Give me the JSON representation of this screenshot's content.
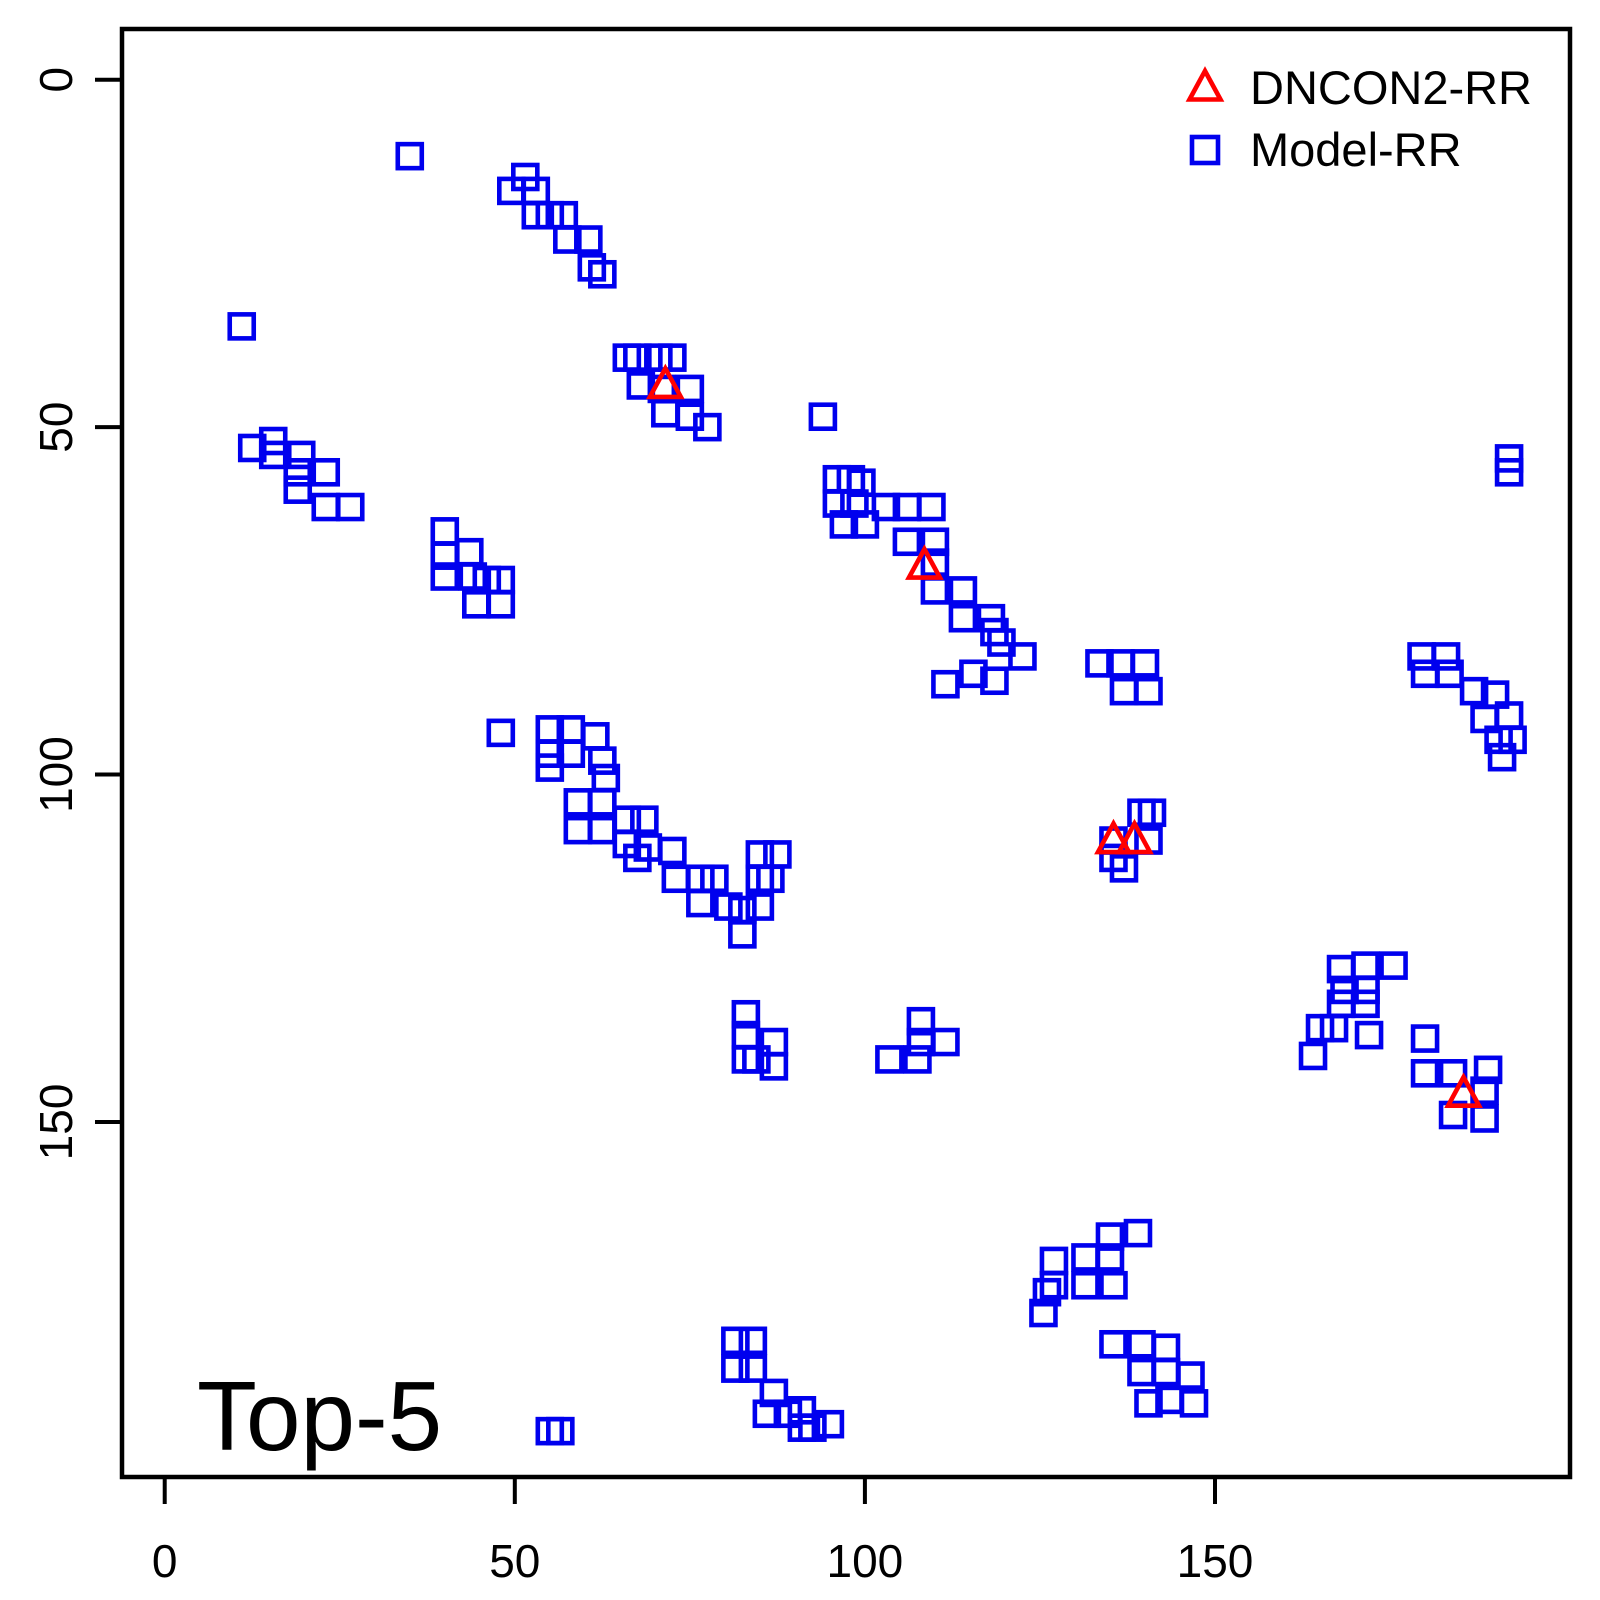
{
  "annotation": {
    "label": "Top-5"
  },
  "legend": {
    "items": [
      {
        "label": "DNCON2-RR",
        "marker": "triangle",
        "color": "#ff0000"
      },
      {
        "label": "Model-RR",
        "marker": "square",
        "color": "#0000ee"
      }
    ]
  },
  "axes": {
    "x": {
      "ticks": [
        0,
        50,
        100,
        150
      ],
      "range": [
        -6.1,
        200.7
      ]
    },
    "y": {
      "ticks": [
        0,
        50,
        100,
        150
      ],
      "range": [
        -7.3,
        201.1
      ],
      "inverted": true
    }
  },
  "chart_data": {
    "type": "scatter",
    "title": "",
    "xlabel": "",
    "ylabel": "",
    "grid": false,
    "legend_position": "top-right",
    "annotation": "Top-5",
    "xlim": [
      -6.1,
      200.7
    ],
    "ylim_reversed": [
      201.1,
      -7.3
    ],
    "series": [
      {
        "name": "Model-RR",
        "marker": "square",
        "color": "#0000ee",
        "points": [
          [
            35,
            11
          ],
          [
            51.5,
            14
          ],
          [
            49.5,
            16
          ],
          [
            53,
            16
          ],
          [
            53,
            19.5
          ],
          [
            55,
            19.5
          ],
          [
            57,
            19.5
          ],
          [
            57.5,
            23
          ],
          [
            60.5,
            23
          ],
          [
            61,
            27
          ],
          [
            62.5,
            28
          ],
          [
            11,
            35.5
          ],
          [
            15.5,
            52
          ],
          [
            12.5,
            53
          ],
          [
            15.5,
            54
          ],
          [
            19.5,
            54
          ],
          [
            19,
            56.5
          ],
          [
            23,
            56.5
          ],
          [
            19,
            59
          ],
          [
            23,
            61.5
          ],
          [
            26.5,
            61.5
          ],
          [
            66,
            40
          ],
          [
            67.5,
            40
          ],
          [
            70.5,
            40
          ],
          [
            72.5,
            40
          ],
          [
            68,
            44
          ],
          [
            71,
            44.5
          ],
          [
            75,
            44.5
          ],
          [
            71.5,
            48
          ],
          [
            75,
            48.5
          ],
          [
            77.5,
            50
          ],
          [
            94,
            48.5
          ],
          [
            96,
            57.5
          ],
          [
            98,
            57.5
          ],
          [
            99.5,
            58
          ],
          [
            96,
            61
          ],
          [
            98.5,
            61
          ],
          [
            103,
            61.5
          ],
          [
            106,
            61.5
          ],
          [
            109.5,
            61.5
          ],
          [
            97,
            64
          ],
          [
            100,
            64
          ],
          [
            106,
            66.5
          ],
          [
            110,
            66.5
          ],
          [
            110,
            69.5
          ],
          [
            110,
            73.5
          ],
          [
            114,
            73.5
          ],
          [
            114,
            77.5
          ],
          [
            118,
            77.5
          ],
          [
            118.5,
            79.5
          ],
          [
            119.5,
            81
          ],
          [
            122.5,
            83
          ],
          [
            115.5,
            85.5
          ],
          [
            118.5,
            86.5
          ],
          [
            111.5,
            87
          ],
          [
            40,
            65
          ],
          [
            40,
            68.5
          ],
          [
            40,
            71.5
          ],
          [
            43.5,
            68
          ],
          [
            44,
            71.5
          ],
          [
            46,
            72
          ],
          [
            48,
            72
          ],
          [
            44.5,
            75.5
          ],
          [
            48,
            75.5
          ],
          [
            48,
            94
          ],
          [
            55,
            93.5
          ],
          [
            58,
            93.5
          ],
          [
            61.5,
            94.5
          ],
          [
            55,
            97
          ],
          [
            58,
            97
          ],
          [
            62.5,
            98
          ],
          [
            55,
            99
          ],
          [
            63,
            100.5
          ],
          [
            59,
            104
          ],
          [
            62.5,
            104
          ],
          [
            66,
            106.5
          ],
          [
            68.5,
            106.5
          ],
          [
            59,
            108
          ],
          [
            62.5,
            108
          ],
          [
            66,
            110
          ],
          [
            69,
            110.5
          ],
          [
            72.5,
            111
          ],
          [
            67.5,
            112
          ],
          [
            73,
            115
          ],
          [
            76.5,
            115
          ],
          [
            78.5,
            115
          ],
          [
            85,
            111.5
          ],
          [
            87.5,
            111.5
          ],
          [
            85,
            115
          ],
          [
            86.5,
            115
          ],
          [
            76.5,
            118.5
          ],
          [
            80.5,
            119
          ],
          [
            85,
            119
          ],
          [
            82.5,
            119.5
          ],
          [
            82.5,
            123
          ],
          [
            133.5,
            84
          ],
          [
            136.5,
            84
          ],
          [
            140,
            84
          ],
          [
            137,
            88
          ],
          [
            140.5,
            88
          ],
          [
            179.5,
            83
          ],
          [
            183,
            83
          ],
          [
            180,
            85.5
          ],
          [
            183.5,
            85.5
          ],
          [
            187,
            88
          ],
          [
            190,
            88.5
          ],
          [
            188.5,
            92
          ],
          [
            192,
            91.5
          ],
          [
            190.5,
            95
          ],
          [
            192.5,
            95
          ],
          [
            191,
            97.5
          ],
          [
            139.5,
            105.5
          ],
          [
            141,
            105.5
          ],
          [
            135.5,
            109.5
          ],
          [
            140.5,
            109.5
          ],
          [
            135.5,
            112
          ],
          [
            137,
            113.5
          ],
          [
            108,
            135.5
          ],
          [
            108,
            138.5
          ],
          [
            103.5,
            141
          ],
          [
            107.5,
            141
          ],
          [
            111.5,
            138.5
          ],
          [
            83,
            134.5
          ],
          [
            83,
            137.5
          ],
          [
            83,
            141
          ],
          [
            84.5,
            141
          ],
          [
            87,
            138.5
          ],
          [
            87,
            142
          ],
          [
            192,
            54.5
          ],
          [
            192,
            56.5
          ],
          [
            168,
            128
          ],
          [
            171.5,
            127.5
          ],
          [
            175.5,
            127.5
          ],
          [
            168.5,
            131
          ],
          [
            171.5,
            131
          ],
          [
            168,
            133
          ],
          [
            171.5,
            133
          ],
          [
            165,
            136.5
          ],
          [
            167,
            136.5
          ],
          [
            172,
            137.5
          ],
          [
            164,
            140.5
          ],
          [
            180,
            138
          ],
          [
            180,
            143
          ],
          [
            184,
            143
          ],
          [
            189,
            142.5
          ],
          [
            188.5,
            145.5
          ],
          [
            184,
            149
          ],
          [
            188.5,
            149.5
          ],
          [
            135,
            166.5
          ],
          [
            139,
            166
          ],
          [
            131.5,
            169.5
          ],
          [
            135,
            169.5
          ],
          [
            127,
            170
          ],
          [
            127,
            173.5
          ],
          [
            126,
            174.5
          ],
          [
            131.5,
            173.5
          ],
          [
            135.5,
            173.5
          ],
          [
            125.5,
            177.5
          ],
          [
            135.5,
            182
          ],
          [
            139.5,
            182
          ],
          [
            143,
            182.5
          ],
          [
            139.5,
            186
          ],
          [
            143,
            186
          ],
          [
            146.5,
            186.5
          ],
          [
            140.5,
            190.5
          ],
          [
            143.5,
            190
          ],
          [
            147,
            190.5
          ],
          [
            81.5,
            181.5
          ],
          [
            84,
            181.5
          ],
          [
            81.5,
            185.5
          ],
          [
            84,
            185.5
          ],
          [
            87,
            189
          ],
          [
            86,
            192
          ],
          [
            89,
            192
          ],
          [
            91,
            191.5
          ],
          [
            91,
            194
          ],
          [
            92.5,
            194
          ],
          [
            95,
            193.5
          ],
          [
            55,
            194.5
          ],
          [
            56.5,
            194.5
          ]
        ]
      },
      {
        "name": "DNCON2-RR",
        "marker": "triangle",
        "color": "#ff0000",
        "points": [
          [
            71.5,
            44
          ],
          [
            108.5,
            70
          ],
          [
            135.5,
            109.5
          ],
          [
            138.5,
            109.5
          ],
          [
            185.5,
            146
          ]
        ]
      }
    ]
  }
}
